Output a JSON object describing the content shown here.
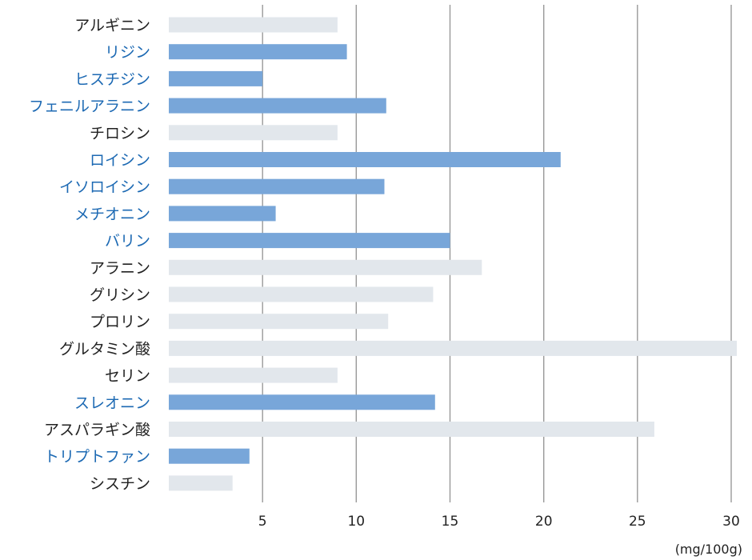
{
  "chart_data": {
    "type": "bar",
    "orientation": "horizontal",
    "categories": [
      "アルギニン",
      "リジン",
      "ヒスチジン",
      "フェニルアラニン",
      "チロシン",
      "ロイシン",
      "イソロイシン",
      "メチオニン",
      "バリン",
      "アラニン",
      "グリシン",
      "プロリン",
      "グルタミン酸",
      "セリン",
      "スレオニン",
      "アスパラギン酸",
      "トリプトファン",
      "シスチン"
    ],
    "values": [
      9.0,
      9.5,
      5.0,
      11.6,
      9.0,
      20.9,
      11.5,
      5.7,
      15.0,
      16.7,
      14.1,
      11.7,
      30.3,
      9.0,
      14.2,
      25.9,
      4.3,
      3.4
    ],
    "essential": [
      false,
      true,
      true,
      true,
      false,
      true,
      true,
      true,
      true,
      false,
      false,
      false,
      false,
      false,
      true,
      false,
      true,
      false
    ],
    "xticks": [
      5,
      10,
      15,
      20,
      25,
      30
    ],
    "xlim": [
      0,
      30.3
    ],
    "unit": "(mg/100g)",
    "grid": "vertical",
    "colors": {
      "essential_bar": "#78a6d9",
      "other_bar": "#e2e7ec",
      "essential_label": "#1c69b3",
      "other_label": "#222222",
      "grid": "#999999"
    }
  }
}
